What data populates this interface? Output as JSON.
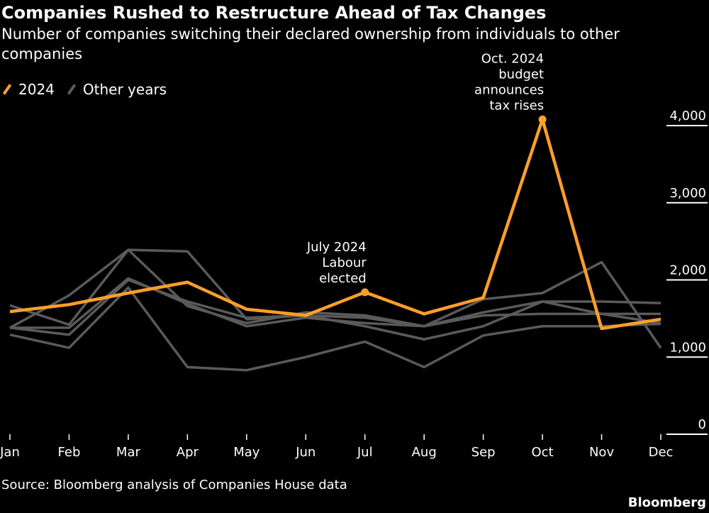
{
  "title": "Companies Rushed to Restructure Ahead of Tax Changes",
  "subtitle": "Number of companies switching their declared ownership from individuals to other companies",
  "legend": [
    {
      "label": "2024",
      "color": "#ff9f2a"
    },
    {
      "label": "Other years",
      "color": "#5a5a5a"
    }
  ],
  "source": "Source: Bloomberg analysis of Companies House data",
  "brand": "Bloomberg",
  "chart_data": {
    "type": "line",
    "categories": [
      "Jan",
      "Feb",
      "Mar",
      "Apr",
      "May",
      "Jun",
      "Jul",
      "Aug",
      "Sep",
      "Oct",
      "Nov",
      "Dec"
    ],
    "ylim": [
      0,
      4000
    ],
    "yticks": [
      0,
      1000,
      2000,
      3000,
      4000
    ],
    "ytick_labels": [
      "0",
      "1,000",
      "2,000",
      "3,000",
      "4,000"
    ],
    "y_axis_position": "right",
    "grid": false,
    "legend_position": "top-left",
    "highlight": {
      "name": "2024",
      "color": "#ff9f2a",
      "values": [
        1590,
        1680,
        1830,
        1970,
        1620,
        1540,
        1840,
        1560,
        1770,
        4080,
        1370,
        1490
      ]
    },
    "series": [
      {
        "values": [
          1670,
          1420,
          2390,
          2370,
          1490,
          1540,
          1510,
          1400,
          1750,
          1830,
          2230,
          1120
        ]
      },
      {
        "values": [
          1380,
          1800,
          2390,
          1660,
          1440,
          1580,
          1540,
          1400,
          1580,
          1720,
          1720,
          1700
        ]
      },
      {
        "values": [
          1380,
          1380,
          2020,
          1690,
          1400,
          1510,
          1440,
          1400,
          1540,
          1560,
          1560,
          1560
        ]
      },
      {
        "values": [
          1380,
          1290,
          2000,
          1720,
          1510,
          1540,
          1400,
          1230,
          1400,
          1720,
          1560,
          1440
        ]
      },
      {
        "values": [
          1290,
          1120,
          1900,
          870,
          830,
          1000,
          1200,
          870,
          1280,
          1400,
          1400,
          1430
        ]
      }
    ],
    "other_color": "#5a5a5a",
    "annotations": [
      {
        "category": "Jul",
        "lines": [
          "July 2024",
          "Labour",
          "elected"
        ]
      },
      {
        "category": "Oct",
        "lines": [
          "Oct. 2024",
          "budget",
          "announces",
          "tax rises"
        ]
      }
    ]
  }
}
